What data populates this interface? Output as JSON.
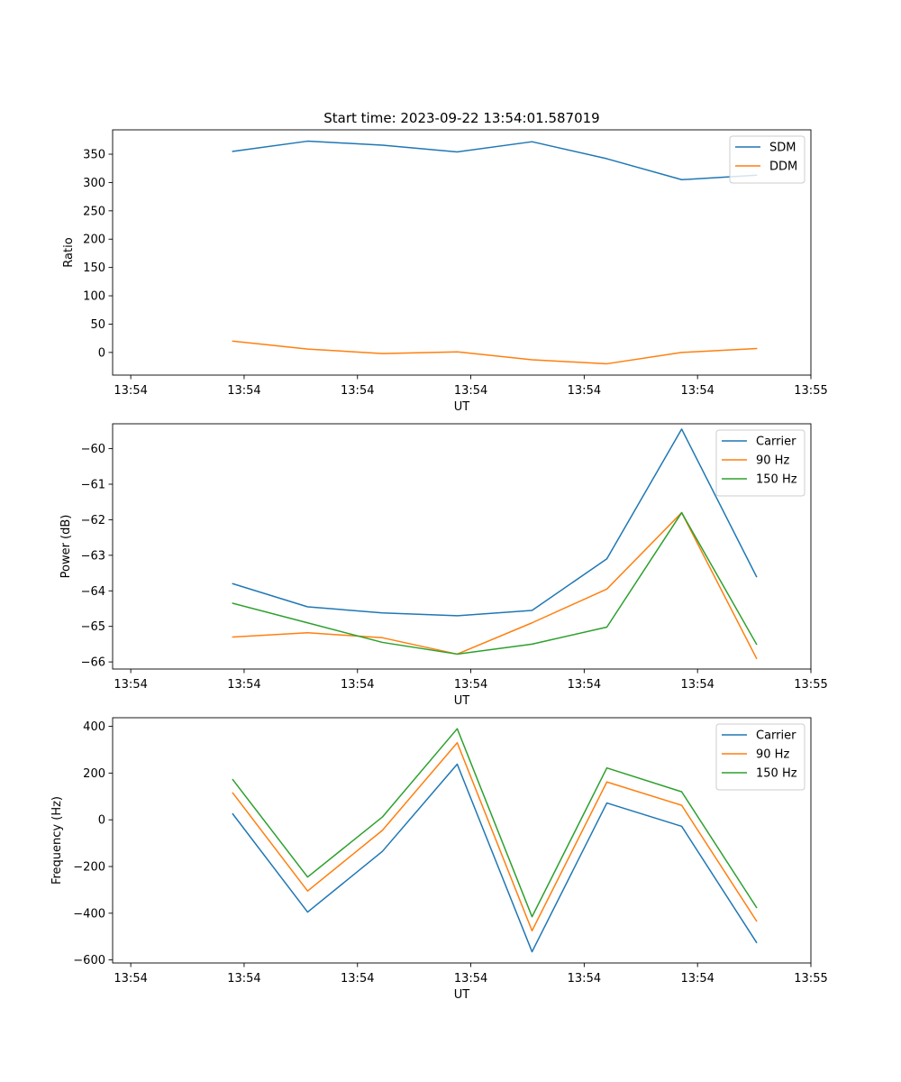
{
  "chart_data": [
    {
      "type": "line",
      "title": "Start time: 2023-09-22 13:54:01.587019",
      "xlabel": "UT",
      "ylabel": "Ratio",
      "x": [
        0.45,
        0.78,
        1.11,
        1.44,
        1.77,
        2.1,
        2.43,
        2.76
      ],
      "xlim": [
        -0.08,
        3.0
      ],
      "xticks": [
        0,
        0.5,
        1.0,
        1.5,
        2.0,
        2.5,
        3.0
      ],
      "xtick_labels": [
        "13:54",
        "13:54",
        "13:54",
        "13:54",
        "13:54",
        "13:54",
        "13:55"
      ],
      "ylim": [
        -40,
        393
      ],
      "yticks": [
        0,
        50,
        100,
        150,
        200,
        250,
        300,
        350
      ],
      "ytick_labels": [
        "0",
        "50",
        "100",
        "150",
        "200",
        "250",
        "300",
        "350"
      ],
      "legend_position": "top-right",
      "series": [
        {
          "name": "SDM",
          "color": "#1f77b4",
          "values": [
            355,
            373,
            366,
            354,
            372,
            342,
            305,
            313
          ]
        },
        {
          "name": "DDM",
          "color": "#ff7f0e",
          "values": [
            20,
            6,
            -2,
            1,
            -13,
            -20,
            0,
            7
          ]
        }
      ]
    },
    {
      "type": "line",
      "title": "",
      "xlabel": "UT",
      "ylabel": "Power (dB)",
      "x": [
        0.45,
        0.78,
        1.11,
        1.44,
        1.77,
        2.1,
        2.43,
        2.76
      ],
      "xlim": [
        -0.08,
        3.0
      ],
      "xticks": [
        0,
        0.5,
        1.0,
        1.5,
        2.0,
        2.5,
        3.0
      ],
      "xtick_labels": [
        "13:54",
        "13:54",
        "13:54",
        "13:54",
        "13:54",
        "13:54",
        "13:55"
      ],
      "ylim": [
        -66.2,
        -59.3
      ],
      "yticks": [
        -66,
        -65,
        -64,
        -63,
        -62,
        -61,
        -60
      ],
      "ytick_labels": [
        "−66",
        "−65",
        "−64",
        "−63",
        "−62",
        "−61",
        "−60"
      ],
      "legend_position": "top-right",
      "series": [
        {
          "name": "Carrier",
          "color": "#1f77b4",
          "values": [
            -63.8,
            -64.45,
            -64.62,
            -64.7,
            -64.55,
            -63.1,
            -59.45,
            -63.6
          ]
        },
        {
          "name": "90 Hz",
          "color": "#ff7f0e",
          "values": [
            -65.3,
            -65.18,
            -65.32,
            -65.78,
            -64.9,
            -63.95,
            -61.8,
            -65.9
          ]
        },
        {
          "name": "150 Hz",
          "color": "#2ca02c",
          "values": [
            -64.35,
            -64.9,
            -65.45,
            -65.78,
            -65.5,
            -65.02,
            -61.8,
            -65.5
          ]
        }
      ]
    },
    {
      "type": "line",
      "title": "",
      "xlabel": "UT",
      "ylabel": "Frequency (Hz)",
      "x": [
        0.45,
        0.78,
        1.11,
        1.44,
        1.77,
        2.1,
        2.43,
        2.76
      ],
      "xlim": [
        -0.08,
        3.0
      ],
      "xticks": [
        0,
        0.5,
        1.0,
        1.5,
        2.0,
        2.5,
        3.0
      ],
      "xtick_labels": [
        "13:54",
        "13:54",
        "13:54",
        "13:54",
        "13:54",
        "13:54",
        "13:55"
      ],
      "ylim": [
        -613,
        437
      ],
      "yticks": [
        -600,
        -400,
        -200,
        0,
        200,
        400
      ],
      "ytick_labels": [
        "−600",
        "−400",
        "−200",
        "0",
        "200",
        "400"
      ],
      "legend_position": "top-right",
      "series": [
        {
          "name": "Carrier",
          "color": "#1f77b4",
          "values": [
            25,
            -395,
            -135,
            238,
            -565,
            72,
            -28,
            -525
          ]
        },
        {
          "name": "90 Hz",
          "color": "#ff7f0e",
          "values": [
            115,
            -305,
            -45,
            330,
            -475,
            162,
            62,
            -433
          ]
        },
        {
          "name": "150 Hz",
          "color": "#2ca02c",
          "values": [
            172,
            -245,
            12,
            390,
            -415,
            222,
            120,
            -375
          ]
        }
      ]
    }
  ]
}
